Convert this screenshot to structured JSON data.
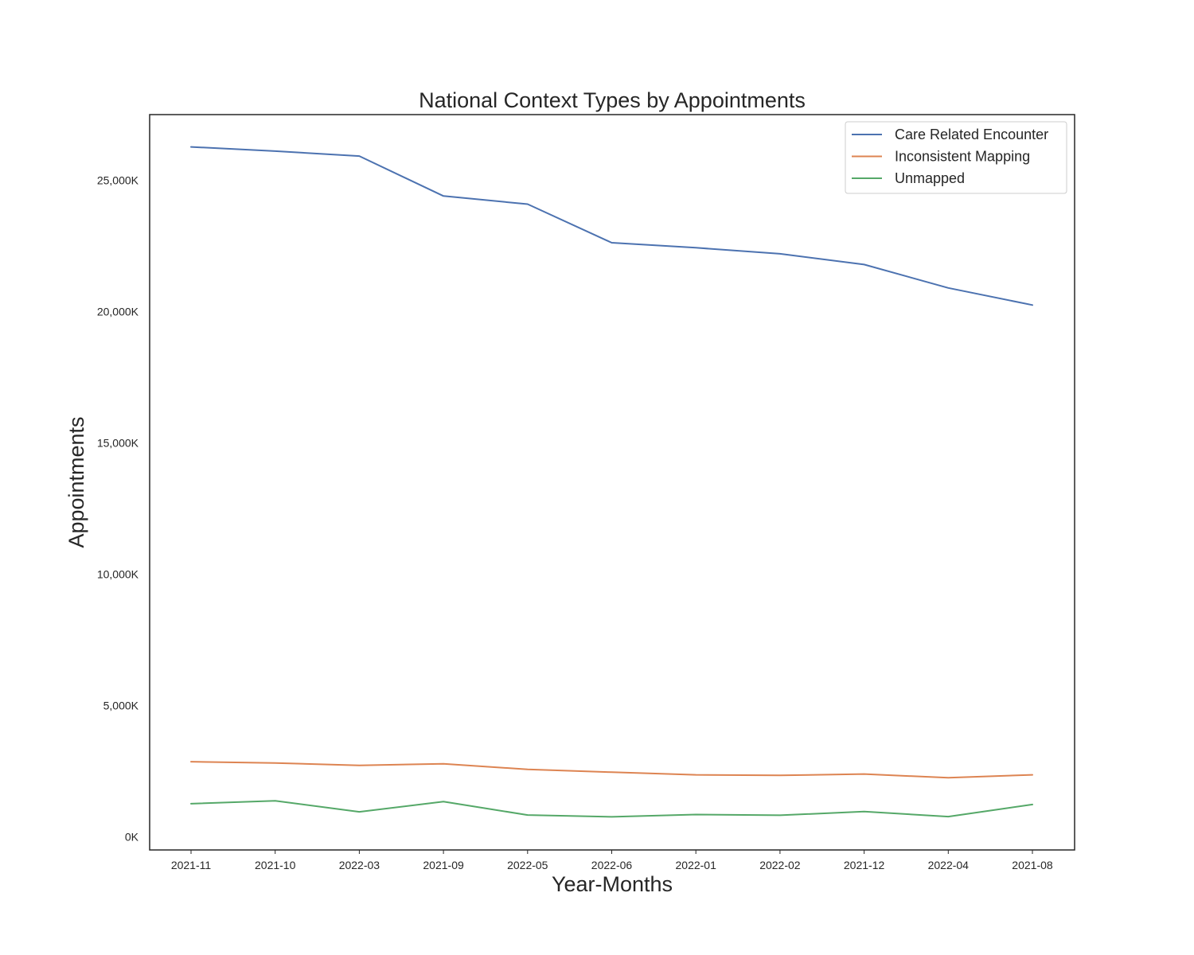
{
  "chart_data": {
    "type": "line",
    "title": "National Context Types by Appointments",
    "xlabel": "Year-Months",
    "ylabel": "Appointments",
    "categories": [
      "2021-11",
      "2021-10",
      "2022-03",
      "2021-09",
      "2022-05",
      "2022-06",
      "2022-01",
      "2022-02",
      "2021-12",
      "2022-04",
      "2021-08"
    ],
    "ylim": [
      -500,
      27500
    ],
    "yticks": [
      0,
      5000,
      10000,
      15000,
      20000,
      25000
    ],
    "ytick_labels": [
      "0K",
      "5,000K",
      "10,000K",
      "15,000K",
      "20,000K",
      "25,000K"
    ],
    "grid": false,
    "legend_position": "top-right",
    "series": [
      {
        "name": "Care Related Encounter",
        "color": "#4c72b0",
        "values": [
          26270,
          26110,
          25920,
          24400,
          24090,
          22620,
          22430,
          22200,
          21790,
          20900,
          20250
        ]
      },
      {
        "name": "Inconsistent Mapping",
        "color": "#dd8452",
        "values": [
          2860,
          2810,
          2720,
          2780,
          2570,
          2460,
          2360,
          2340,
          2390,
          2250,
          2360
        ]
      },
      {
        "name": "Unmapped",
        "color": "#55a868",
        "values": [
          1260,
          1370,
          950,
          1340,
          830,
          760,
          850,
          820,
          960,
          770,
          1230
        ]
      }
    ]
  }
}
